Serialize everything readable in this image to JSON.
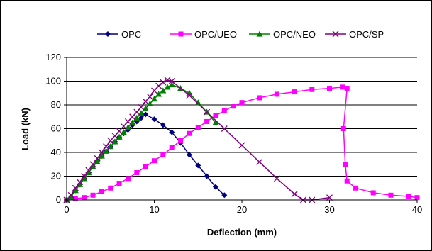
{
  "chart_data": {
    "type": "line",
    "xlabel": "Deflection (mm)",
    "ylabel": "Load (kN)",
    "xlim": [
      0,
      40
    ],
    "ylim": [
      0,
      120
    ],
    "xticks": [
      0,
      10,
      20,
      30,
      40
    ],
    "yticks": [
      0,
      20,
      40,
      60,
      80,
      100,
      120
    ],
    "grid": "horizontal",
    "legend_position": "top",
    "series": [
      {
        "name": "OPC",
        "color": "#000080",
        "marker": "diamond",
        "x": [
          0,
          0.5,
          1,
          1.5,
          2,
          2.5,
          3,
          3.5,
          4,
          4.5,
          5,
          5.5,
          6,
          6.5,
          7,
          7.5,
          8,
          8.5,
          9,
          10,
          11,
          12,
          13,
          14,
          15,
          16,
          17,
          18
        ],
        "y": [
          0,
          3,
          8,
          13,
          18,
          23,
          28,
          33,
          37,
          41,
          45,
          49,
          53,
          56,
          59,
          63,
          66,
          69,
          72,
          68,
          63,
          57,
          48,
          38,
          29,
          20,
          11,
          4
        ]
      },
      {
        "name": "OPC/UEO",
        "color": "#FF00FF",
        "marker": "square",
        "x": [
          0,
          1,
          2,
          3,
          4,
          5,
          6,
          7,
          8,
          9,
          10,
          11,
          12,
          13,
          14,
          15,
          16,
          17,
          18,
          19,
          20,
          22,
          24,
          26,
          28,
          30,
          31.5,
          32,
          31.6,
          31.8,
          32,
          33,
          35,
          37,
          39,
          40
        ],
        "y": [
          0,
          1,
          2,
          4,
          7,
          10,
          14,
          18,
          23,
          28,
          33,
          38,
          44,
          50,
          56,
          61,
          66,
          71,
          75,
          79,
          82,
          86,
          89,
          91,
          93,
          94,
          95,
          94,
          60,
          30,
          16,
          10,
          6,
          4,
          3,
          2
        ]
      },
      {
        "name": "OPC/NEO",
        "color": "#008000",
        "marker": "triangle",
        "x": [
          0,
          0.5,
          1,
          1.5,
          2,
          2.5,
          3,
          3.5,
          4,
          4.5,
          5,
          5.5,
          6,
          6.5,
          7,
          7.5,
          8,
          8.5,
          9,
          9.5,
          10,
          10.5,
          11,
          11.5,
          12,
          13,
          14,
          15,
          16,
          17
        ],
        "y": [
          0,
          3,
          8,
          13,
          18,
          23,
          28,
          32,
          37,
          41,
          45,
          49,
          53,
          57,
          61,
          65,
          69,
          73,
          77,
          81,
          85,
          89,
          92,
          95,
          97,
          94,
          90,
          82,
          74,
          65
        ]
      },
      {
        "name": "OPC/SP",
        "color": "#800080",
        "marker": "x",
        "x": [
          0,
          0.5,
          1,
          1.5,
          2,
          2.5,
          3,
          3.5,
          4,
          4.5,
          5,
          5.5,
          6,
          6.5,
          7,
          7.5,
          8,
          8.5,
          9,
          9.5,
          10,
          10.5,
          11,
          11.5,
          12,
          14,
          16,
          18,
          20,
          22,
          24,
          26,
          27,
          28,
          30
        ],
        "y": [
          0,
          4,
          10,
          15,
          20,
          25,
          30,
          35,
          40,
          45,
          50,
          54,
          58,
          62,
          66,
          70,
          74,
          78,
          83,
          87,
          92,
          96,
          99,
          101,
          100,
          88,
          74,
          60,
          46,
          32,
          18,
          5,
          0,
          0,
          2
        ]
      }
    ]
  }
}
